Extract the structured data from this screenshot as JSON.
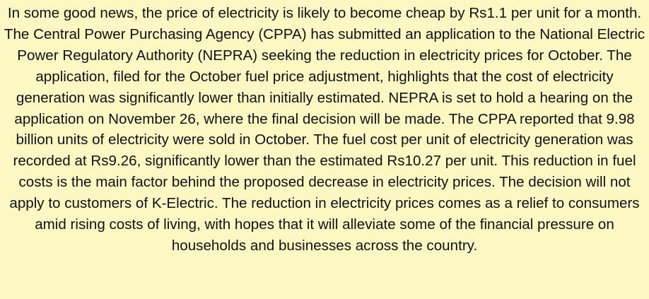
{
  "article": {
    "text": "In some good news, the price of electricity is likely to become cheap by Rs1.1 per unit for a month. The Central Power Purchasing Agency (CPPA) has submitted an application to the National Electric Power Regulatory Authority (NEPRA) seeking the reduction in electricity prices for October. The application, filed for the October fuel price adjustment, highlights that the cost of electricity generation was significantly lower than initially estimated. NEPRA is set to hold a hearing on the application on November 26, where the final decision will be made. The CPPA reported that 9.98 billion units of electricity were sold in October. The fuel cost per unit of electricity generation was recorded at Rs9.26, significantly lower than the estimated Rs10.27 per unit. This reduction in fuel costs is the main factor behind the proposed decrease in electricity prices. The decision will not apply to customers of K-Electric. The reduction in electricity prices comes as a relief to consumers amid rising costs of living, with hopes that it will alleviate some of the financial pressure on households and businesses across the country."
  },
  "colors": {
    "background": "#fdf7c3",
    "text": "#111111"
  }
}
